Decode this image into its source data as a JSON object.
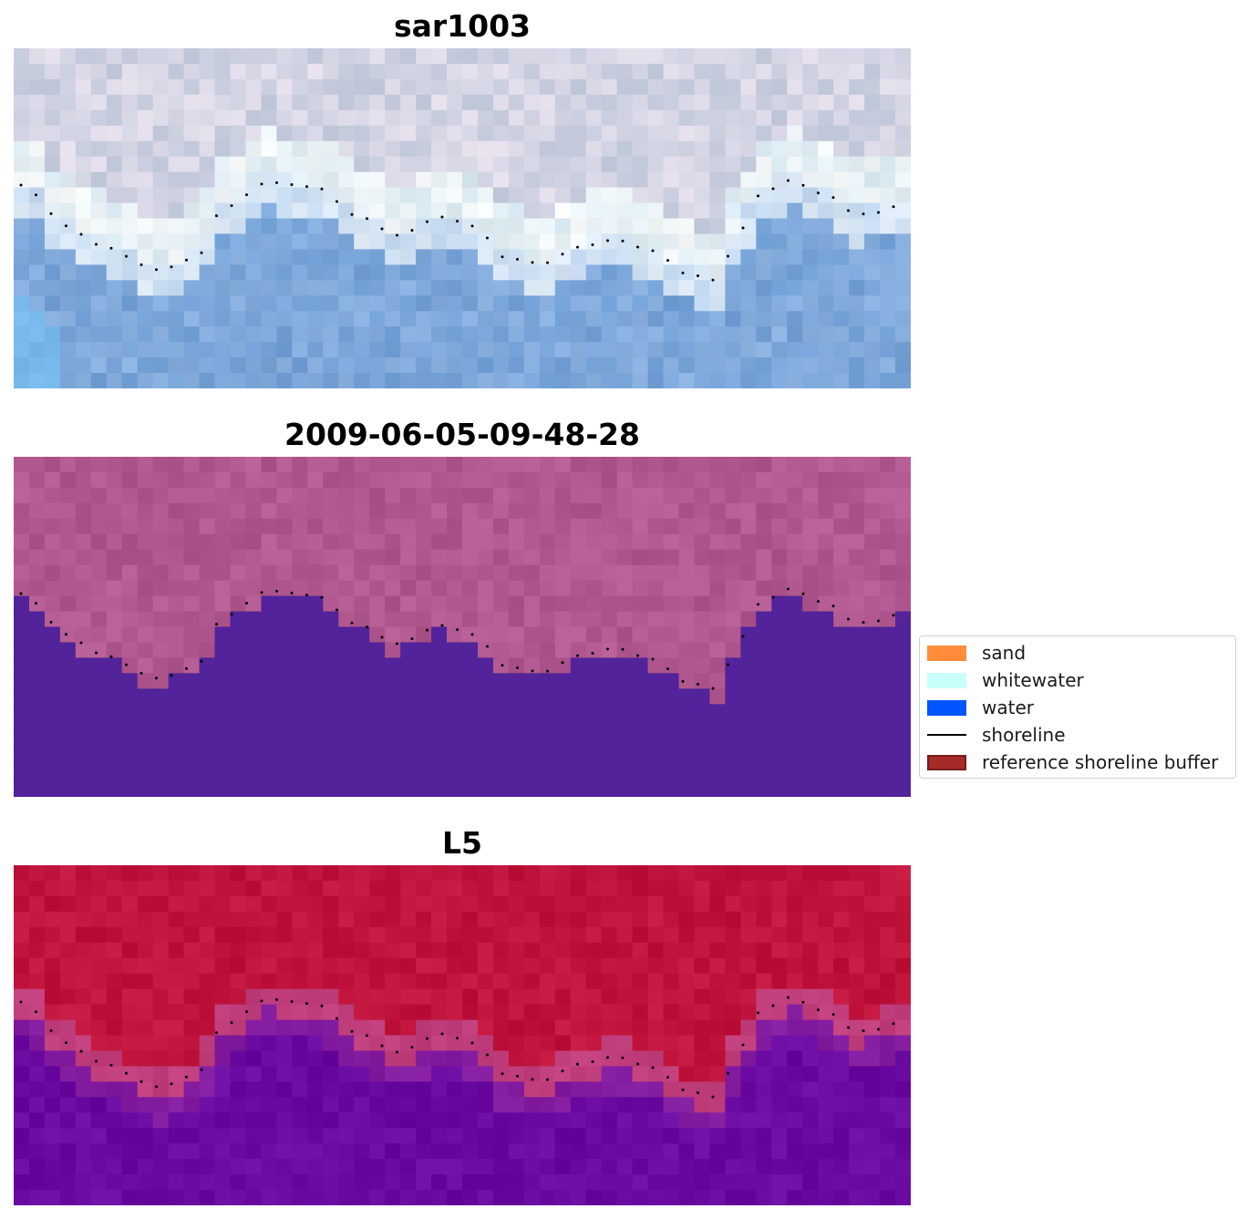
{
  "panels": [
    {
      "title": "sar1003",
      "style": "rgb"
    },
    {
      "title": "2009-06-05-09-48-28",
      "style": "classified"
    },
    {
      "title": "L5",
      "style": "index"
    }
  ],
  "legend": {
    "items": [
      {
        "label": "sand",
        "color": "#ff8c3a",
        "kind": "patch"
      },
      {
        "label": "whitewater",
        "color": "#c8fffb",
        "kind": "patch"
      },
      {
        "label": "water",
        "color": "#0055ff",
        "kind": "patch"
      },
      {
        "label": "shoreline",
        "color": "#000000",
        "kind": "line"
      },
      {
        "label": "reference shoreline buffer",
        "color": "#a52a2a",
        "kind": "patch"
      }
    ]
  },
  "colors": {
    "classified_land": "#b0588f",
    "classified_water": "#52239a",
    "index_land": "#c0143c",
    "index_water": "#6a0aa0"
  }
}
